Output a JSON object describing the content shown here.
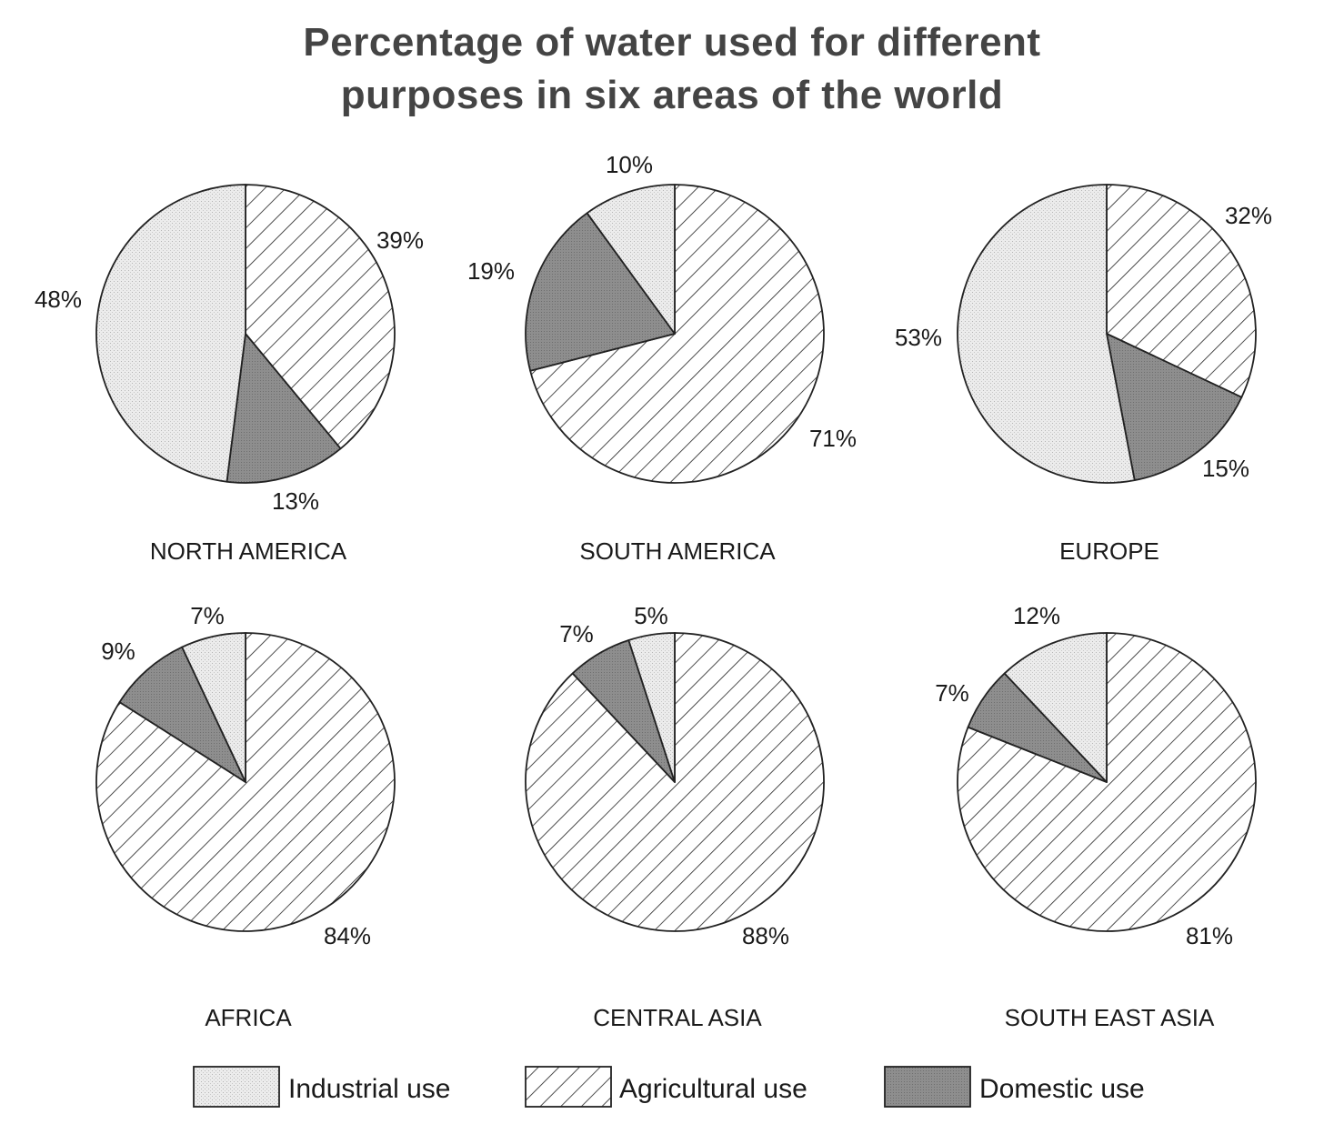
{
  "title_lines": [
    "Percentage of water used for different",
    "purposes in six areas of the world"
  ],
  "colors": {
    "industrial": "#e8e8e8",
    "agricultural_bg": "#ffffff",
    "domestic": "#8a8a8a",
    "stroke": "#222222"
  },
  "legend": [
    {
      "key": "industrial",
      "label": "Industrial use"
    },
    {
      "key": "agricultural",
      "label": "Agricultural use"
    },
    {
      "key": "domestic",
      "label": "Domestic use"
    }
  ],
  "chart_data": [
    {
      "type": "pie",
      "title": "NORTH AMERICA",
      "slices": [
        {
          "category": "Agricultural use",
          "key": "agricultural",
          "value": 39,
          "label": "39%"
        },
        {
          "category": "Domestic use",
          "key": "domestic",
          "value": 13,
          "label": "13%"
        },
        {
          "category": "Industrial use",
          "key": "industrial",
          "value": 48,
          "label": "48%"
        }
      ]
    },
    {
      "type": "pie",
      "title": "SOUTH AMERICA",
      "slices": [
        {
          "category": "Agricultural use",
          "key": "agricultural",
          "value": 71,
          "label": "71%"
        },
        {
          "category": "Domestic use",
          "key": "domestic",
          "value": 19,
          "label": "19%"
        },
        {
          "category": "Industrial use",
          "key": "industrial",
          "value": 10,
          "label": "10%"
        }
      ]
    },
    {
      "type": "pie",
      "title": "EUROPE",
      "slices": [
        {
          "category": "Agricultural use",
          "key": "agricultural",
          "value": 32,
          "label": "32%"
        },
        {
          "category": "Domestic use",
          "key": "domestic",
          "value": 15,
          "label": "15%"
        },
        {
          "category": "Industrial use",
          "key": "industrial",
          "value": 53,
          "label": "53%"
        }
      ]
    },
    {
      "type": "pie",
      "title": "AFRICA",
      "slices": [
        {
          "category": "Agricultural use",
          "key": "agricultural",
          "value": 84,
          "label": "84%"
        },
        {
          "category": "Domestic use",
          "key": "domestic",
          "value": 9,
          "label": "9%"
        },
        {
          "category": "Industrial use",
          "key": "industrial",
          "value": 7,
          "label": "7%"
        }
      ]
    },
    {
      "type": "pie",
      "title": "CENTRAL ASIA",
      "slices": [
        {
          "category": "Agricultural use",
          "key": "agricultural",
          "value": 88,
          "label": "88%"
        },
        {
          "category": "Domestic use",
          "key": "domestic",
          "value": 7,
          "label": "7%"
        },
        {
          "category": "Industrial use",
          "key": "industrial",
          "value": 5,
          "label": "5%"
        }
      ]
    },
    {
      "type": "pie",
      "title": "SOUTH EAST ASIA",
      "slices": [
        {
          "category": "Agricultural use",
          "key": "agricultural",
          "value": 81,
          "label": "81%"
        },
        {
          "category": "Domestic use",
          "key": "domestic",
          "value": 7,
          "label": "7%"
        },
        {
          "category": "Industrial use",
          "key": "industrial",
          "value": 12,
          "label": "12%"
        }
      ]
    }
  ]
}
